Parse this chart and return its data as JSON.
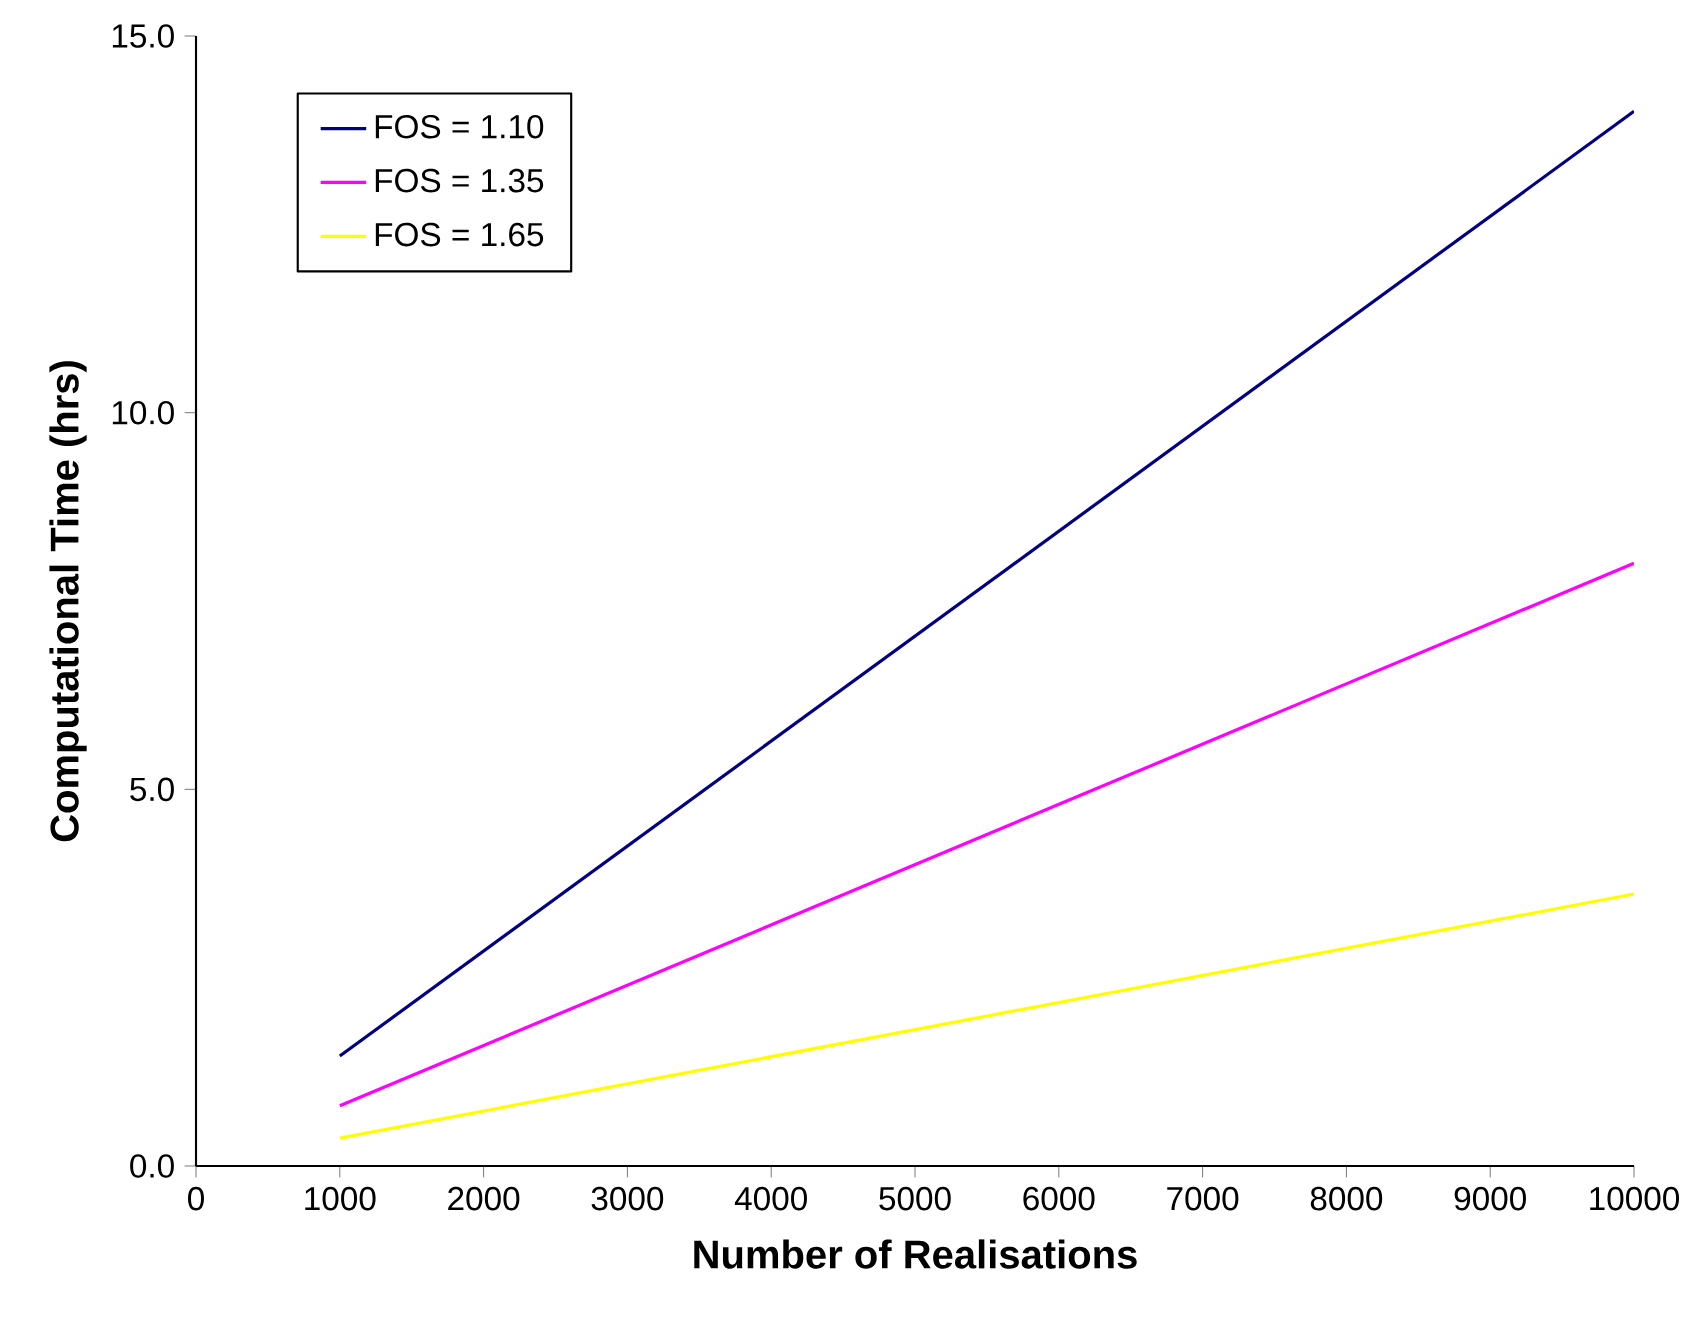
{
  "chart_data": {
    "type": "line",
    "xlabel": "Number of Realisations",
    "ylabel": "Computational Time (hrs)",
    "x": [
      1000,
      10000
    ],
    "series": [
      {
        "name": "FOS = 1.10",
        "color": "#000080",
        "values": [
          1.46,
          14.0
        ]
      },
      {
        "name": "FOS = 1.35",
        "color": "#ff00ff",
        "values": [
          0.8,
          8.0
        ]
      },
      {
        "name": "FOS = 1.65",
        "color": "#ffff00",
        "values": [
          0.37,
          3.61
        ]
      }
    ],
    "xlim": [
      0,
      10000
    ],
    "xticks": [
      0,
      1000,
      2000,
      3000,
      4000,
      5000,
      6000,
      7000,
      8000,
      9000,
      10000
    ],
    "ylim": [
      0,
      15
    ],
    "yticks": [
      {
        "value": 0,
        "label": "0.0"
      },
      {
        "value": 5,
        "label": "5.0"
      },
      {
        "value": 10,
        "label": "10.0"
      },
      {
        "value": 15,
        "label": "15.0"
      }
    ],
    "legend": "top left",
    "grid": false,
    "marker": "none",
    "line_style": "solid"
  }
}
